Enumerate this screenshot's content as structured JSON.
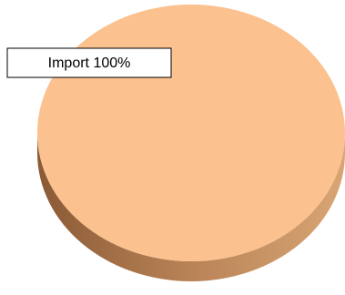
{
  "chart_data": {
    "type": "pie",
    "categories": [
      "Import"
    ],
    "values": [
      100
    ],
    "value_labels": [
      "100%"
    ],
    "colors": [
      "#fbc18f"
    ]
  }
}
